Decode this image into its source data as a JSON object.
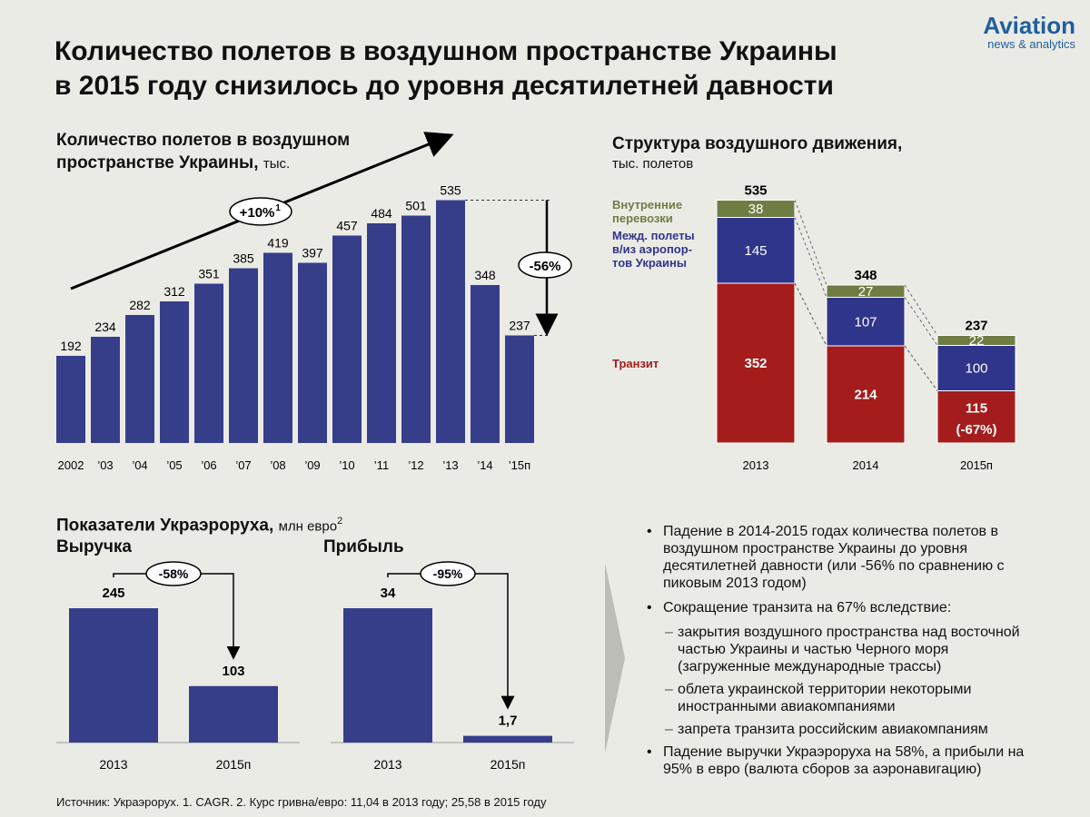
{
  "title": {
    "line1": "Количество полетов в воздушном пространстве Украины",
    "line2": "в 2015 году снизилось до уровня десятилетней давности"
  },
  "logo": {
    "name": "Aviation",
    "tagline": "news & analytics"
  },
  "colors": {
    "bar": "#363e8a",
    "intl": "#2f358a",
    "domestic": "#6f7d45",
    "transit": "#a51c1c",
    "background": "#ebebe6"
  },
  "chart_data": [
    {
      "type": "bar",
      "title_bold1": "Количество полетов в воздушном",
      "title_bold2": "пространстве Украины,",
      "title_unit": "тыс.",
      "categories": [
        "2002",
        "’03",
        "’04",
        "’05",
        "’06",
        "’07",
        "’08",
        "’09",
        "’10",
        "’11",
        "’12",
        "’13",
        "’14",
        "’15п"
      ],
      "values": [
        192,
        234,
        282,
        312,
        351,
        385,
        419,
        397,
        457,
        484,
        501,
        535,
        348,
        237
      ],
      "value_labels": [
        "192",
        "234",
        "282",
        "312",
        "351",
        "385",
        "419",
        "397",
        "457",
        "484",
        "501",
        "535",
        "348",
        "237"
      ],
      "ylim": [
        0,
        560
      ],
      "annotations": {
        "cagr": "+10%",
        "cagr_sup": "1",
        "drop": "-56%"
      }
    },
    {
      "type": "stacked-bar",
      "title_bold": "Структура воздушного движения,",
      "title_unit": "тыс. полетов",
      "categories": [
        "2013",
        "2014",
        "2015п"
      ],
      "series": [
        {
          "name": "Транзит",
          "values": [
            352,
            214,
            115
          ],
          "labels": [
            "352",
            "214",
            "115"
          ]
        },
        {
          "name": "Межд. полеты в/из аэропортов Украины",
          "values": [
            145,
            107,
            100
          ],
          "labels": [
            "145",
            "107",
            "100"
          ]
        },
        {
          "name": "Внутренние перевозки",
          "values": [
            38,
            27,
            22
          ],
          "labels": [
            "38",
            "27",
            "22"
          ]
        }
      ],
      "legend_lines": {
        "domestic": [
          "Внутренние",
          "перевозки"
        ],
        "intl": [
          "Межд. полеты",
          "в/из аэропор-",
          "тов Украины"
        ],
        "transit": [
          "Транзит"
        ]
      },
      "totals": [
        "535",
        "348",
        "237"
      ],
      "transit_change": "(-67%)",
      "ylim": [
        0,
        560
      ]
    },
    {
      "type": "bar",
      "title": "Выручка",
      "categories": [
        "2013",
        "2015п"
      ],
      "values": [
        245,
        103
      ],
      "value_labels": [
        "245",
        "103"
      ],
      "change": "-58%"
    },
    {
      "type": "bar",
      "title": "Прибыль",
      "categories": [
        "2013",
        "2015п"
      ],
      "values": [
        34,
        1.7
      ],
      "value_labels": [
        "34",
        "1,7"
      ],
      "change": "-95%"
    }
  ],
  "ukraero": {
    "title": "Показатели Украэроруха,",
    "unit": "млн евро",
    "unit_sup": "2"
  },
  "bullets": {
    "b1": "Падение в 2014-2015 годах количества полетов в воздушном пространстве Украины до уровня десятилетней давности (или -56% по сравнению с пиковым 2013 годом)",
    "b2": "Сокращение транзита на 67% вследствие:",
    "s1": "закрытия воздушного пространства над восточной частью Украины и частью Черного моря (загруженные международные трассы)",
    "s2": "облета украинской территории некоторыми иностранными авиакомпаниями",
    "s3": "запрета транзита российским авиакомпаниям",
    "b3": "Падение выручки Украэроруха на 58%, а прибыли на 95% в евро (валюта сборов за аэронавигацию)"
  },
  "source": "Источник: Украэрорух. 1. CAGR. 2. Курс гривна/евро: 11,04 в 2013 году; 25,58 в 2015 году"
}
